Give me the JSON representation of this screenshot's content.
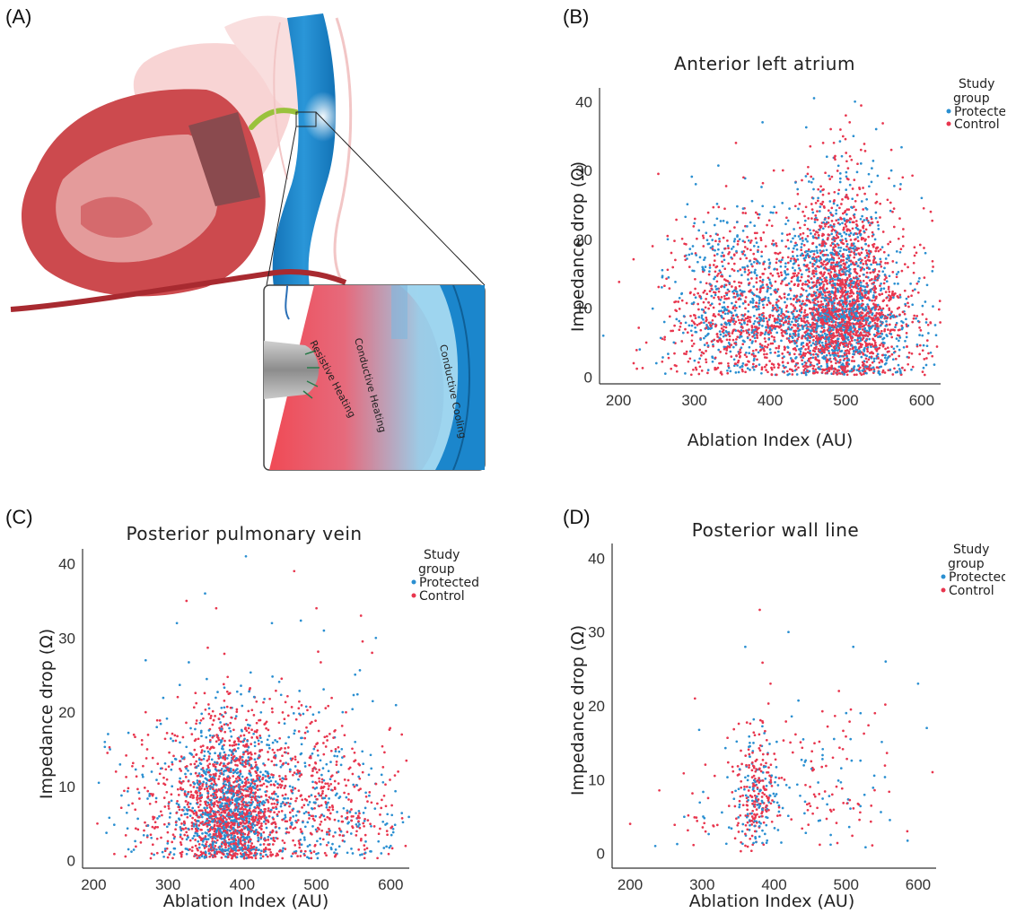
{
  "panels": {
    "a": {
      "label": "(A)"
    },
    "b": {
      "label": "(B)"
    },
    "c": {
      "label": "(C)"
    },
    "d": {
      "label": "(D)"
    }
  },
  "illustration": {
    "heating_labels": [
      "Resistive Heating",
      "Conductive Heating",
      "Conductive Cooling"
    ]
  },
  "colors": {
    "protected": "#2a8fd1",
    "control": "#e8364e"
  },
  "chart_data": [
    {
      "id": "b",
      "type": "scatter",
      "title": "Anterior left atrium",
      "xlabel": "Ablation Index (AU)",
      "ylabel": "Impedance drop (Ω)",
      "xlim": [
        175,
        625
      ],
      "ylim": [
        -1,
        42
      ],
      "xticks": [
        200,
        300,
        400,
        500,
        600
      ],
      "yticks": [
        0,
        10,
        20,
        30,
        40
      ],
      "legend": {
        "title_lines": [
          "Study",
          "group"
        ],
        "position": "top-right"
      },
      "series": [
        {
          "name": "Protected",
          "color": "#2a8fd1",
          "clusters": [
            [
              490,
              35,
              10,
              7,
              950
            ],
            [
              380,
              45,
              9,
              6,
              380
            ],
            [
              540,
              50,
              8,
              6,
              200
            ],
            [
              330,
              40,
              8,
              6,
              120
            ]
          ],
          "outliers": [
            [
              180,
              6
            ],
            [
              228,
              4
            ],
            [
              250,
              2
            ],
            [
              265,
              20
            ],
            [
              302,
              28
            ],
            [
              330,
              23
            ],
            [
              390,
              37
            ],
            [
              458,
              40.5
            ],
            [
              512,
              40
            ],
            [
              510,
              35
            ],
            [
              560,
              30
            ],
            [
              600,
              26
            ],
            [
              605,
              18
            ],
            [
              475,
              32
            ],
            [
              520,
              31
            ],
            [
              540,
              36
            ]
          ]
        },
        {
          "name": "Control",
          "color": "#e8364e",
          "clusters": [
            [
              490,
              35,
              10,
              7,
              1450
            ],
            [
              380,
              45,
              9,
              6,
              520
            ],
            [
              545,
              50,
              9,
              6,
              320
            ],
            [
              320,
              40,
              8,
              6,
              170
            ]
          ],
          "outliers": [
            [
              220,
              2
            ],
            [
              245,
              19
            ],
            [
              275,
              17
            ],
            [
              355,
              34
            ],
            [
              365,
              29
            ],
            [
              405,
              30
            ],
            [
              500,
              38
            ],
            [
              505,
              37
            ],
            [
              560,
              33
            ],
            [
              575,
              29
            ],
            [
              612,
              24
            ],
            [
              615,
              16
            ],
            [
              470,
              34
            ],
            [
              480,
              36
            ],
            [
              520,
              33
            ]
          ]
        }
      ]
    },
    {
      "id": "c",
      "type": "scatter",
      "title": "Posterior pulmonary vein",
      "xlabel": "Ablation Index (AU)",
      "ylabel": "Impedance drop (Ω)",
      "xlim": [
        185,
        625
      ],
      "ylim": [
        -1,
        42
      ],
      "xticks": [
        200,
        300,
        400,
        500,
        600
      ],
      "yticks": [
        0,
        10,
        20,
        30,
        40
      ],
      "legend": {
        "title_lines": [
          "Study",
          "group"
        ],
        "position": "top-right"
      },
      "series": [
        {
          "name": "Protected",
          "color": "#2a8fd1",
          "clusters": [
            [
              380,
              30,
              7,
              5,
              650
            ],
            [
              450,
              55,
              8,
              6,
              300
            ],
            [
              300,
              40,
              7,
              5,
              90
            ],
            [
              540,
              40,
              6,
              5,
              80
            ]
          ],
          "outliers": [
            [
              215,
              16
            ],
            [
              222,
              15
            ],
            [
              270,
              27
            ],
            [
              285,
              18
            ],
            [
              312,
              32
            ],
            [
              350,
              36
            ],
            [
              405,
              41
            ],
            [
              440,
              32
            ],
            [
              510,
              31
            ],
            [
              580,
              30
            ],
            [
              595,
              5
            ],
            [
              600,
              2
            ]
          ]
        },
        {
          "name": "Control",
          "color": "#e8364e",
          "clusters": [
            [
              380,
              30,
              7,
              5,
              950
            ],
            [
              450,
              55,
              8,
              6,
              450
            ],
            [
              300,
              40,
              7,
              5,
              130
            ],
            [
              540,
              45,
              7,
              5,
              120
            ]
          ],
          "outliers": [
            [
              205,
              5
            ],
            [
              230,
              12
            ],
            [
              270,
              20
            ],
            [
              325,
              35
            ],
            [
              365,
              34
            ],
            [
              470,
              39
            ],
            [
              500,
              34
            ],
            [
              560,
              33
            ],
            [
              575,
              28
            ],
            [
              615,
              17
            ],
            [
              610,
              12
            ],
            [
              620,
              2
            ]
          ]
        }
      ]
    },
    {
      "id": "d",
      "type": "scatter",
      "title": "Posterior wall line",
      "xlabel": "Ablation Index (AU)",
      "ylabel": "Impedance drop (Ω)",
      "xlim": [
        175,
        625
      ],
      "ylim": [
        -2,
        42
      ],
      "xticks": [
        200,
        300,
        400,
        500,
        600
      ],
      "yticks": [
        0,
        10,
        20,
        30,
        40
      ],
      "legend": {
        "title_lines": [
          "Study",
          "group"
        ],
        "position": "top-right"
      },
      "series": [
        {
          "name": "Protected",
          "color": "#2a8fd1",
          "clusters": [
            [
              380,
              15,
              7,
              4,
              110
            ],
            [
              470,
              50,
              8,
              5,
              55
            ],
            [
              320,
              30,
              6,
              4,
              20
            ]
          ],
          "outliers": [
            [
              235,
              1
            ],
            [
              360,
              28
            ],
            [
              420,
              30
            ],
            [
              510,
              28
            ],
            [
              520,
              19
            ],
            [
              555,
              26
            ],
            [
              600,
              23
            ],
            [
              612,
              17
            ]
          ]
        },
        {
          "name": "Control",
          "color": "#e8364e",
          "clusters": [
            [
              375,
              15,
              8,
              4,
              170
            ],
            [
              470,
              50,
              8,
              5,
              80
            ],
            [
              320,
              30,
              6,
              4,
              30
            ]
          ],
          "outliers": [
            [
              200,
              4
            ],
            [
              290,
              21
            ],
            [
              380,
              33
            ],
            [
              395,
              23
            ],
            [
              490,
              22
            ],
            [
              540,
              19
            ],
            [
              620,
              11
            ],
            [
              585,
              3
            ]
          ]
        }
      ]
    }
  ]
}
